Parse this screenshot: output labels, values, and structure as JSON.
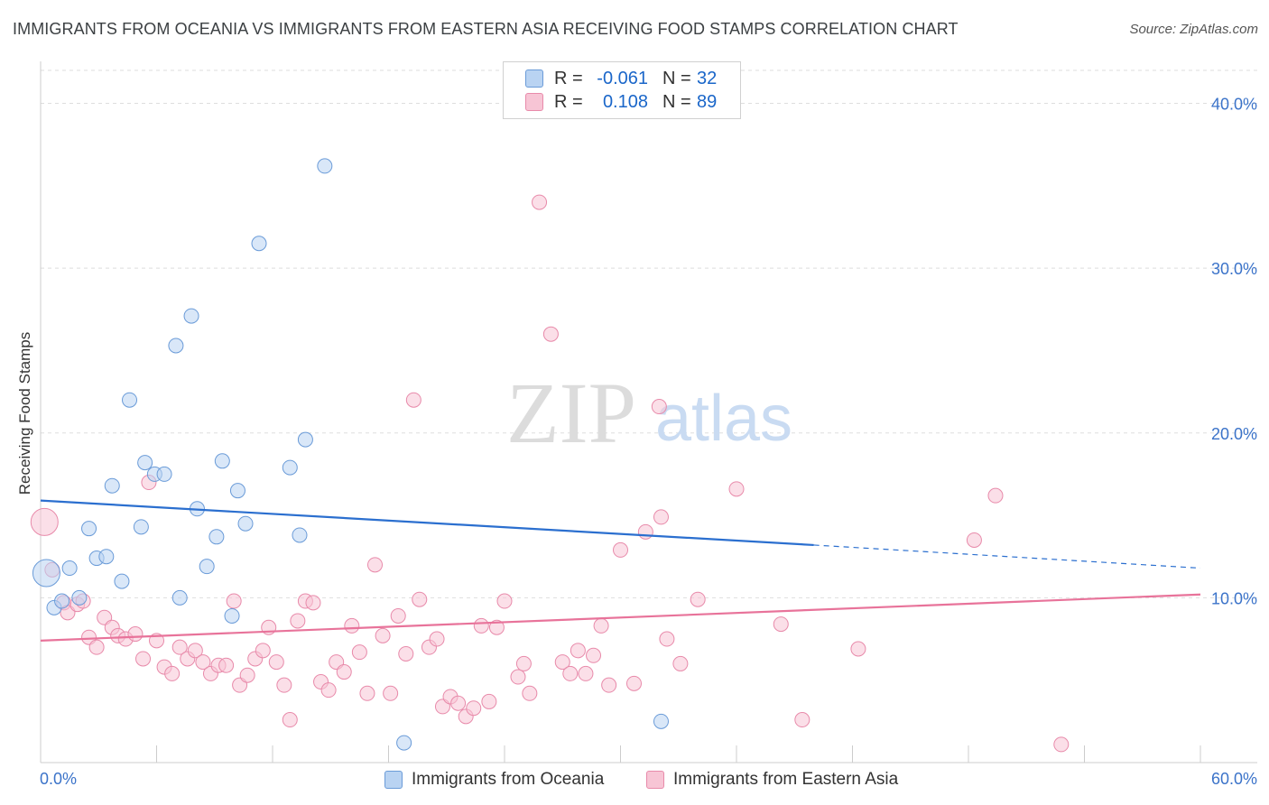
{
  "title": "IMMIGRANTS FROM OCEANIA VS IMMIGRANTS FROM EASTERN ASIA RECEIVING FOOD STAMPS CORRELATION CHART",
  "source": "Source: ZipAtlas.com",
  "watermark": {
    "zip": "ZIP",
    "atlas": "atlas"
  },
  "legend": {
    "rows": [
      {
        "r_label": "R =",
        "r_value": "-0.061",
        "n_label": "N =",
        "n_value": "32"
      },
      {
        "r_label": "R =",
        "r_value": "0.108",
        "n_label": "N =",
        "n_value": "89"
      }
    ]
  },
  "bottom_legend": {
    "oceania": "Immigrants from Oceania",
    "eastern_asia": "Immigrants from Eastern Asia"
  },
  "colors": {
    "oceania_fill": "#b9d3f2",
    "oceania_stroke": "#6a9bd8",
    "oceania_line": "#2b6fcf",
    "eastern_asia_fill": "#f7c5d5",
    "eastern_asia_stroke": "#e88aaa",
    "eastern_asia_line": "#e8739a",
    "axis_label": "#3b73c9"
  },
  "chart_data": {
    "type": "scatter",
    "xlabel": "",
    "ylabel": "Receiving Food Stamps",
    "xlim": [
      0,
      60
    ],
    "ylim": [
      0,
      42
    ],
    "x_tick_labels": [
      "0.0%",
      "60.0%"
    ],
    "y_ticks": [
      10,
      20,
      30,
      40
    ],
    "y_tick_labels": [
      "10.0%",
      "20.0%",
      "30.0%",
      "40.0%"
    ],
    "grid": true,
    "series": [
      {
        "name": "Immigrants from Oceania",
        "r": -0.061,
        "n": 32,
        "trend": {
          "x0": 0,
          "y0": 15.9,
          "x1": 40,
          "y1": 13.2,
          "dash_to_x": 60,
          "dash_to_y": 11.8
        },
        "points": [
          [
            0.3,
            11.5
          ],
          [
            0.7,
            9.4
          ],
          [
            1.1,
            9.8
          ],
          [
            1.5,
            11.8
          ],
          [
            2.0,
            10.0
          ],
          [
            2.5,
            14.2
          ],
          [
            2.9,
            12.4
          ],
          [
            3.4,
            12.5
          ],
          [
            3.7,
            16.8
          ],
          [
            4.2,
            11.0
          ],
          [
            4.6,
            22.0
          ],
          [
            5.2,
            14.3
          ],
          [
            5.4,
            18.2
          ],
          [
            5.9,
            17.5
          ],
          [
            6.4,
            17.5
          ],
          [
            7.0,
            25.3
          ],
          [
            7.2,
            10.0
          ],
          [
            7.8,
            27.1
          ],
          [
            8.1,
            15.4
          ],
          [
            8.6,
            11.9
          ],
          [
            9.1,
            13.7
          ],
          [
            9.4,
            18.3
          ],
          [
            9.9,
            8.9
          ],
          [
            10.2,
            16.5
          ],
          [
            10.6,
            14.5
          ],
          [
            11.3,
            31.5
          ],
          [
            12.9,
            17.9
          ],
          [
            13.4,
            13.8
          ],
          [
            13.7,
            19.6
          ],
          [
            14.7,
            36.2
          ],
          [
            18.8,
            1.2
          ],
          [
            32.1,
            2.5
          ]
        ]
      },
      {
        "name": "Immigrants from Eastern Asia",
        "r": 0.108,
        "n": 89,
        "trend": {
          "x0": 0,
          "y0": 7.4,
          "x1": 60,
          "y1": 10.2
        },
        "points": [
          [
            0.2,
            14.6
          ],
          [
            0.6,
            11.7
          ],
          [
            1.2,
            9.7
          ],
          [
            1.4,
            9.1
          ],
          [
            1.9,
            9.6
          ],
          [
            2.2,
            9.8
          ],
          [
            2.5,
            7.6
          ],
          [
            2.9,
            7.0
          ],
          [
            3.3,
            8.8
          ],
          [
            3.7,
            8.2
          ],
          [
            4.0,
            7.7
          ],
          [
            4.4,
            7.5
          ],
          [
            4.9,
            7.8
          ],
          [
            5.3,
            6.3
          ],
          [
            5.6,
            17.0
          ],
          [
            6.0,
            7.4
          ],
          [
            6.4,
            5.8
          ],
          [
            6.8,
            5.4
          ],
          [
            7.2,
            7.0
          ],
          [
            7.6,
            6.3
          ],
          [
            8.0,
            6.8
          ],
          [
            8.4,
            6.1
          ],
          [
            8.8,
            5.4
          ],
          [
            9.2,
            5.9
          ],
          [
            9.6,
            5.9
          ],
          [
            10.0,
            9.8
          ],
          [
            10.3,
            4.7
          ],
          [
            10.7,
            5.3
          ],
          [
            11.1,
            6.3
          ],
          [
            11.5,
            6.8
          ],
          [
            11.8,
            8.2
          ],
          [
            12.2,
            6.1
          ],
          [
            12.6,
            4.7
          ],
          [
            12.9,
            2.6
          ],
          [
            13.3,
            8.6
          ],
          [
            13.7,
            9.8
          ],
          [
            14.1,
            9.7
          ],
          [
            14.5,
            4.9
          ],
          [
            14.9,
            4.4
          ],
          [
            15.3,
            6.1
          ],
          [
            15.7,
            5.5
          ],
          [
            16.1,
            8.3
          ],
          [
            16.5,
            6.7
          ],
          [
            16.9,
            4.2
          ],
          [
            17.3,
            12.0
          ],
          [
            17.7,
            7.7
          ],
          [
            18.1,
            4.2
          ],
          [
            18.5,
            8.9
          ],
          [
            18.9,
            6.6
          ],
          [
            19.3,
            22.0
          ],
          [
            19.6,
            9.9
          ],
          [
            20.1,
            7.0
          ],
          [
            20.5,
            7.5
          ],
          [
            20.8,
            3.4
          ],
          [
            21.2,
            4.0
          ],
          [
            21.6,
            3.6
          ],
          [
            22.0,
            2.8
          ],
          [
            22.4,
            3.3
          ],
          [
            22.8,
            8.3
          ],
          [
            23.2,
            3.7
          ],
          [
            23.6,
            8.2
          ],
          [
            24.0,
            9.8
          ],
          [
            24.7,
            5.2
          ],
          [
            25.0,
            6.0
          ],
          [
            25.3,
            4.2
          ],
          [
            25.8,
            34.0
          ],
          [
            26.4,
            26.0
          ],
          [
            27.0,
            6.1
          ],
          [
            27.4,
            5.4
          ],
          [
            27.8,
            6.8
          ],
          [
            28.2,
            5.4
          ],
          [
            28.6,
            6.5
          ],
          [
            29.0,
            8.3
          ],
          [
            29.4,
            4.7
          ],
          [
            30.0,
            12.9
          ],
          [
            30.7,
            4.8
          ],
          [
            31.3,
            14.0
          ],
          [
            32.0,
            21.6
          ],
          [
            32.1,
            14.9
          ],
          [
            32.4,
            7.5
          ],
          [
            33.1,
            6.0
          ],
          [
            34.0,
            9.9
          ],
          [
            36.0,
            16.6
          ],
          [
            38.3,
            8.4
          ],
          [
            39.4,
            2.6
          ],
          [
            42.3,
            6.9
          ],
          [
            48.3,
            13.5
          ],
          [
            49.4,
            16.2
          ],
          [
            52.8,
            1.1
          ]
        ]
      }
    ]
  }
}
